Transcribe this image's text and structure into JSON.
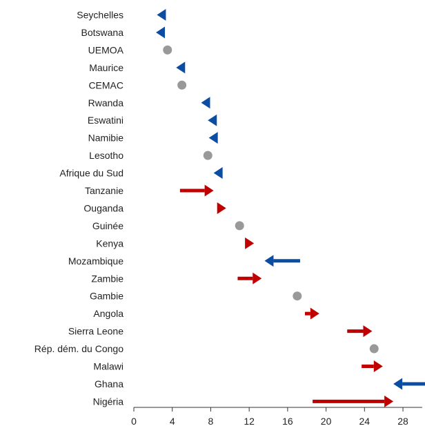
{
  "chart_data": {
    "type": "arrow-dot",
    "title": "",
    "xlabel": "",
    "ylabel": "",
    "xlim": [
      0,
      30
    ],
    "xticks": [
      0,
      4,
      8,
      12,
      16,
      20,
      24,
      28
    ],
    "grid": false,
    "colors": {
      "increase": "#C00000",
      "decrease": "#0B4DA2",
      "unchanged": "#999999",
      "axis": "#333333"
    },
    "rows": [
      {
        "label": "Seychelles",
        "from": 3.0,
        "to": 2.4
      },
      {
        "label": "Botswana",
        "from": 3.0,
        "to": 2.3
      },
      {
        "label": "UEMOA",
        "from": 3.5,
        "to": 3.5
      },
      {
        "label": "Maurice",
        "from": 5.0,
        "to": 4.4
      },
      {
        "label": "CEMAC",
        "from": 5.0,
        "to": 5.0
      },
      {
        "label": "Rwanda",
        "from": 7.5,
        "to": 7.0
      },
      {
        "label": "Eswatini",
        "from": 8.3,
        "to": 7.7
      },
      {
        "label": "Namibie",
        "from": 8.4,
        "to": 7.8
      },
      {
        "label": "Lesotho",
        "from": 7.7,
        "to": 7.7
      },
      {
        "label": "Afrique du Sud",
        "from": 8.9,
        "to": 8.3
      },
      {
        "label": "Tanzanie",
        "from": 4.8,
        "to": 8.3
      },
      {
        "label": "Ouganda",
        "from": 8.9,
        "to": 9.6
      },
      {
        "label": "Guinée",
        "from": 11.0,
        "to": 11.0
      },
      {
        "label": "Kenya",
        "from": 11.8,
        "to": 12.5
      },
      {
        "label": "Mozambique",
        "from": 17.3,
        "to": 13.6
      },
      {
        "label": "Zambie",
        "from": 10.8,
        "to": 13.3
      },
      {
        "label": "Gambie",
        "from": 17.0,
        "to": 17.0
      },
      {
        "label": "Angola",
        "from": 17.8,
        "to": 19.3
      },
      {
        "label": "Sierra Leone",
        "from": 22.2,
        "to": 24.8
      },
      {
        "label": "Rép. dém. du Congo",
        "from": 25.0,
        "to": 25.0
      },
      {
        "label": "Malawi",
        "from": 23.7,
        "to": 25.9
      },
      {
        "label": "Ghana",
        "from": 30.5,
        "to": 27.0
      },
      {
        "label": "Nigéria",
        "from": 18.6,
        "to": 27.0
      }
    ]
  }
}
